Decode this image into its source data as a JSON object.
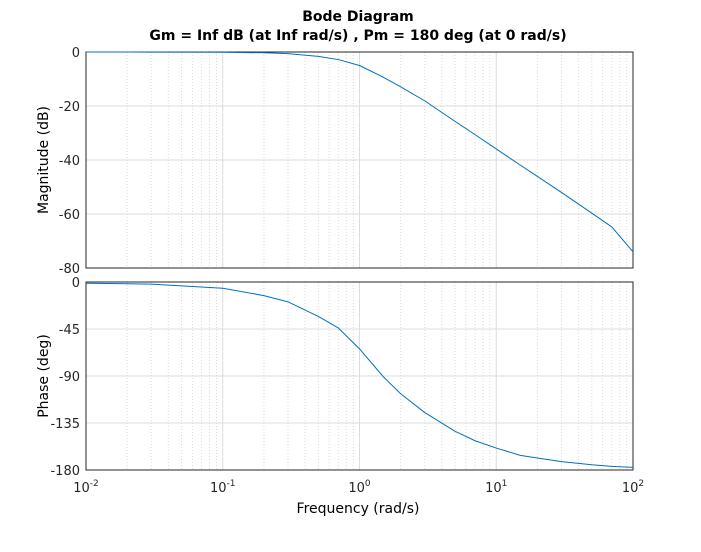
{
  "chart_data": {
    "type": "line",
    "title": "Bode Diagram",
    "subtitle": "Gm = Inf dB (at Inf rad/s) ,  Pm =  180 deg (at 0 rad/s)",
    "xlabel": "Frequency  (rad/s)",
    "xscale": "log",
    "xlim": [
      0.01,
      100
    ],
    "x_ticks": [
      {
        "base": "10",
        "exp": "-2",
        "value": 0.01
      },
      {
        "base": "10",
        "exp": "-1",
        "value": 0.1
      },
      {
        "base": "10",
        "exp": "0",
        "value": 1
      },
      {
        "base": "10",
        "exp": "1",
        "value": 10
      },
      {
        "base": "10",
        "exp": "2",
        "value": 100
      }
    ],
    "grid": true,
    "line_color": "#0072bd",
    "panels": [
      {
        "name": "magnitude",
        "ylabel": "Magnitude (dB)",
        "ylim": [
          -80,
          0
        ],
        "y_ticks": [
          "0",
          "-20",
          "-40",
          "-60",
          "-80"
        ],
        "y_tick_values": [
          0,
          -20,
          -40,
          -60,
          -80
        ],
        "series": [
          {
            "x": [
              0.01,
              0.03,
              0.1,
              0.2,
              0.3,
              0.5,
              0.7,
              1.0,
              1.5,
              2.0,
              3.0,
              5.0,
              7.0,
              10.0,
              15.0,
              20.0,
              30.0,
              50.0,
              70.0,
              100.0
            ],
            "y": [
              0.0,
              -0.03,
              -0.1,
              -0.3,
              -0.6,
              -1.6,
              -2.8,
              -5.0,
              -9.4,
              -12.9,
              -18.1,
              -25.7,
              -30.6,
              -35.9,
              -41.9,
              -46.1,
              -52.0,
              -59.7,
              -64.8,
              -74.0
            ]
          }
        ]
      },
      {
        "name": "phase",
        "ylabel": "Phase (deg)",
        "ylim": [
          -180,
          0
        ],
        "y_ticks": [
          "0",
          "-45",
          "-90",
          "-135",
          "-180"
        ],
        "y_tick_values": [
          0,
          -45,
          -90,
          -135,
          -180
        ],
        "series": [
          {
            "x": [
              0.01,
              0.03,
              0.1,
              0.2,
              0.3,
              0.5,
              0.7,
              1.0,
              1.5,
              2.0,
              3.0,
              5.0,
              7.0,
              10.0,
              15.0,
              20.0,
              30.0,
              50.0,
              70.0,
              100.0
            ],
            "y": [
              -1.2,
              -2.0,
              -6.0,
              -13.0,
              -19.0,
              -33.0,
              -44.0,
              -64.0,
              -91.0,
              -107.0,
              -125.0,
              -143.0,
              -152.0,
              -159.0,
              -166.0,
              -168.5,
              -172.0,
              -175.0,
              -176.5,
              -177.5
            ]
          }
        ]
      }
    ]
  }
}
